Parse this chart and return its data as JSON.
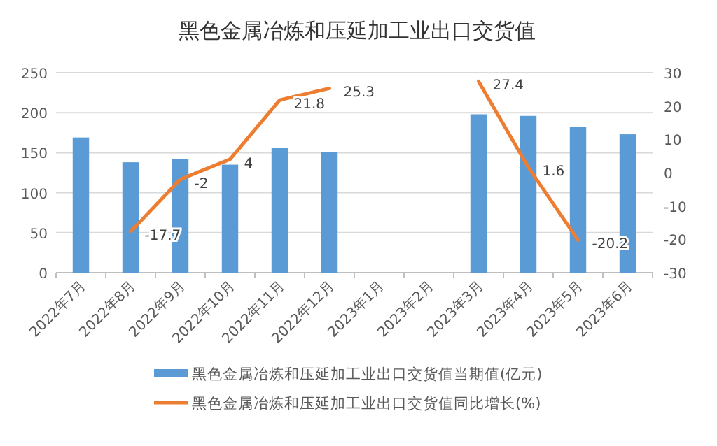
{
  "chart_data": {
    "type": "bar",
    "title": "黑色金属冶炼和压延加工业出口交货值",
    "categories": [
      "2022年7月",
      "2022年8月",
      "2022年9月",
      "2022年10月",
      "2022年11月",
      "2022年12月",
      "2023年1月",
      "2023年2月",
      "2023年3月",
      "2023年4月",
      "2023年5月",
      "2023年6月"
    ],
    "series": [
      {
        "name": "黑色金属冶炼和压延加工业出口交货值当期值(亿元)",
        "color": "#5b9bd5",
        "values": [
          169,
          138,
          142,
          135,
          156,
          151,
          null,
          null,
          198,
          196,
          182,
          173
        ]
      },
      {
        "name": "黑色金属冶炼和压延加工业出口交货值同比增长(%)",
        "type": "line",
        "axis": "y2",
        "color": "#ed7d31",
        "values": [
          null,
          -17.7,
          -2,
          4,
          21.8,
          25.3,
          null,
          null,
          27.4,
          1.6,
          -20.2,
          null
        ],
        "value_labels": [
          null,
          "-17.7",
          "-2",
          "4",
          "21.8",
          "25.3",
          null,
          null,
          "27.4",
          "1.6",
          "-20.2",
          null
        ]
      }
    ],
    "ylim": [
      0,
      250
    ],
    "yticks": [
      0,
      50,
      100,
      150,
      200,
      250
    ],
    "y2lim": [
      -30,
      30
    ],
    "y2ticks": [
      -30,
      -20,
      -10,
      0,
      10,
      20,
      30
    ],
    "grid": "y",
    "legend": "bottom"
  }
}
